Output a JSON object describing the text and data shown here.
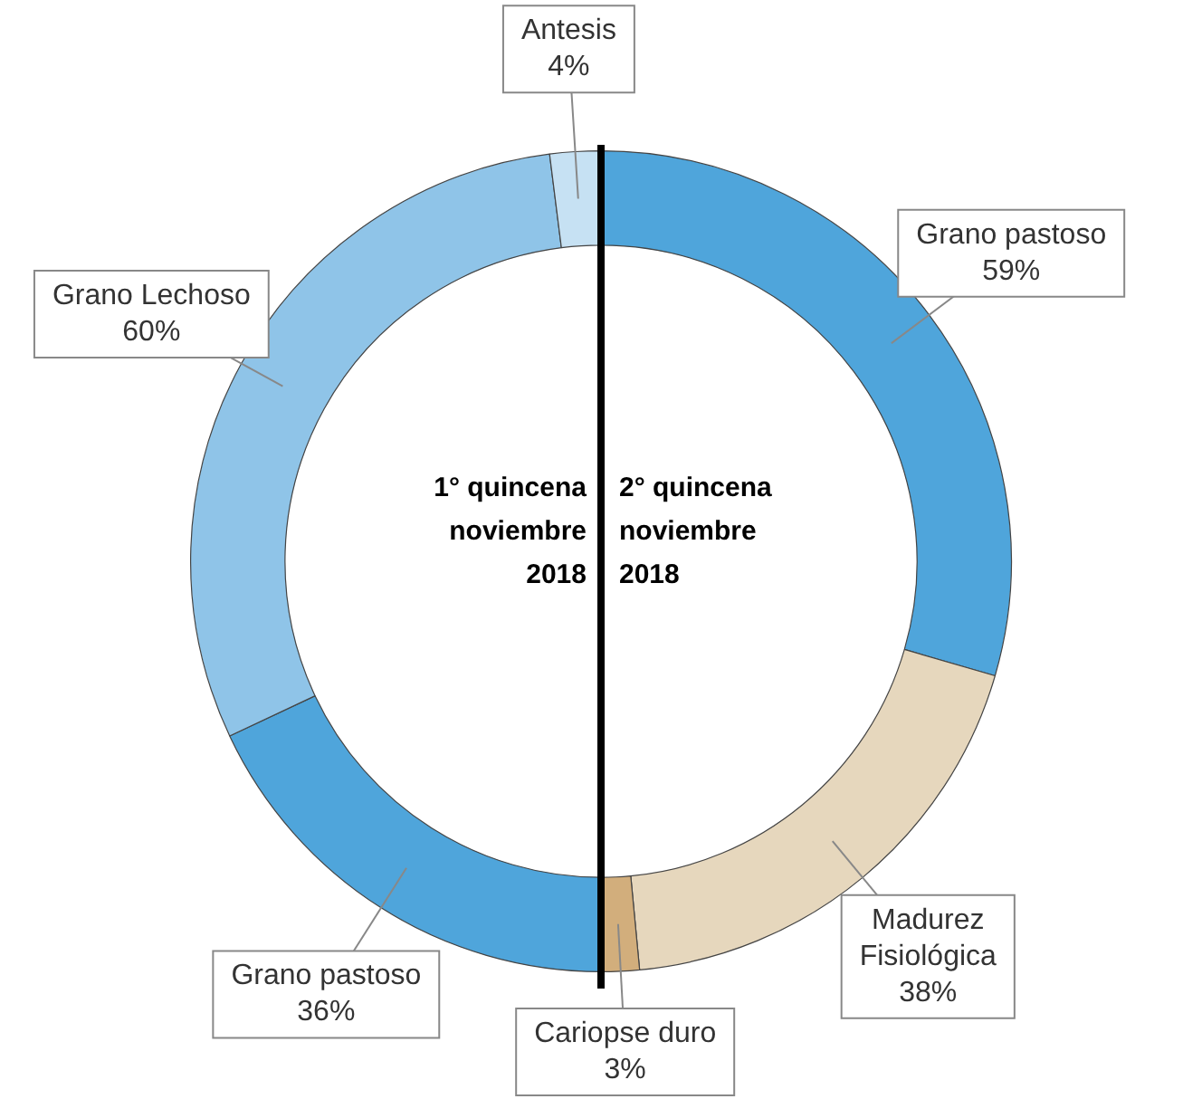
{
  "chart_data": {
    "type": "donut",
    "categories": [
      "Grano pastoso",
      "Madurez\nFisiológica",
      "Cariopse duro",
      "Grano pastoso",
      "Grano Lechoso",
      "Antesis"
    ],
    "values": [
      59,
      38,
      3,
      36,
      60,
      4
    ],
    "value_labels": [
      "59%",
      "38%",
      "3%",
      "36%",
      "60%",
      "4%"
    ],
    "colors": [
      "#4fa5db",
      "#e6d7bd",
      "#d2ae7c",
      "#4fa5db",
      "#8fc4e8",
      "#c6e1f3"
    ],
    "annotations": [
      "1° quincena\nnoviembre\n2018",
      "2° quincena\nnoviembre\n2018"
    ],
    "legend": false
  }
}
